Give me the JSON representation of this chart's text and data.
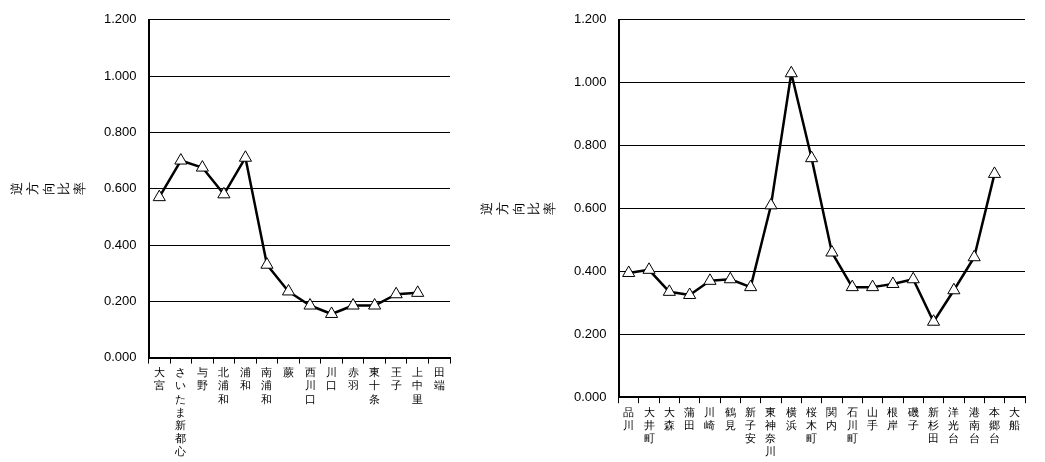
{
  "chart_data": [
    {
      "type": "line",
      "ylabel": "逆方向比率",
      "categories": [
        "大宮",
        "さいたま新都心",
        "与野",
        "北浦和",
        "浦和",
        "南浦和",
        "蕨",
        "西川口",
        "川口",
        "赤羽",
        "東十条",
        "王子",
        "上中里",
        "田端"
      ],
      "series": [
        {
          "color": "#000000",
          "values": [
            0.57,
            0.7,
            0.675,
            0.58,
            0.71,
            0.33,
            0.235,
            0.185,
            0.155,
            0.185,
            0.185,
            0.225,
            0.23,
            null
          ]
        }
      ],
      "ylim": [
        0,
        1.2
      ],
      "yticks": [
        {
          "value": 0,
          "label": "0.000"
        },
        {
          "value": 0.2,
          "label": "0.200"
        },
        {
          "value": 0.4,
          "label": "0.400"
        },
        {
          "value": 0.6,
          "label": "0.600"
        },
        {
          "value": 0.8,
          "label": "0.800"
        },
        {
          "value": 1.0,
          "label": "1.000"
        },
        {
          "value": 1.2,
          "label": "1.200"
        }
      ],
      "grid": "y",
      "legend": false,
      "marker": "triangle",
      "line_style": "solid"
    },
    {
      "type": "line",
      "ylabel": "逆方向比率",
      "categories": [
        "品川",
        "大井町",
        "大森",
        "蒲田",
        "川崎",
        "鶴見",
        "新子安",
        "東神奈川",
        "横浜",
        "桜木町",
        "関内",
        "石川町",
        "山手",
        "根岸",
        "磯子",
        "新杉田",
        "洋光台",
        "港南台",
        "本郷台",
        "大船"
      ],
      "series": [
        {
          "color": "#000000",
          "values": [
            0.395,
            0.405,
            0.335,
            0.325,
            0.37,
            0.375,
            0.35,
            0.61,
            1.03,
            0.76,
            0.46,
            0.35,
            0.35,
            0.36,
            0.375,
            0.24,
            0.34,
            0.445,
            0.71,
            null
          ]
        }
      ],
      "ylim": [
        0,
        1.2
      ],
      "yticks": [
        {
          "value": 0,
          "label": "0.000"
        },
        {
          "value": 0.2,
          "label": "0.200"
        },
        {
          "value": 0.4,
          "label": "0.400"
        },
        {
          "value": 0.6,
          "label": "0.600"
        },
        {
          "value": 0.8,
          "label": "0.800"
        },
        {
          "value": 1.0,
          "label": "1.000"
        },
        {
          "value": 1.2,
          "label": "1.200"
        }
      ],
      "grid": "y",
      "legend": false,
      "marker": "triangle",
      "line_style": "solid"
    }
  ]
}
